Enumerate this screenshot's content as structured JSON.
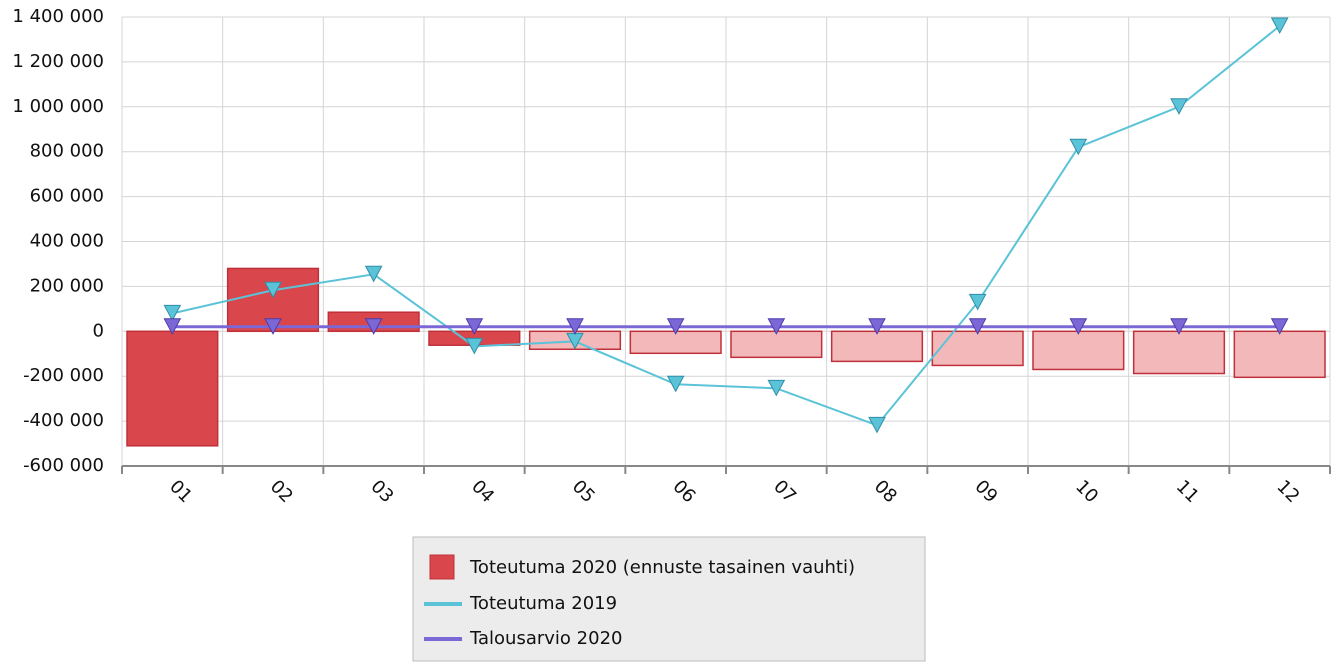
{
  "chart_data": {
    "type": "bar",
    "categories": [
      "01",
      "02",
      "03",
      "04",
      "05",
      "06",
      "07",
      "08",
      "09",
      "10",
      "11",
      "12"
    ],
    "ylim": [
      -600000,
      1400000
    ],
    "yticks": [
      {
        "value": -600000,
        "label": "-600 000"
      },
      {
        "value": -400000,
        "label": "-400 000"
      },
      {
        "value": -200000,
        "label": "-200 000"
      },
      0,
      {
        "value": 200000,
        "label": "200 000"
      },
      {
        "value": 400000,
        "label": "400 000"
      },
      {
        "value": 600000,
        "label": "600 000"
      },
      {
        "value": 800000,
        "label": "800 000"
      },
      {
        "value": 1000000,
        "label": "1 000 000"
      },
      {
        "value": 1200000,
        "label": "1 200 000"
      },
      {
        "value": 1400000,
        "label": "1 400 000"
      }
    ],
    "grid": true,
    "legend": "bottom",
    "series": [
      {
        "name": "Toteutuma 2020 (ennuste tasainen vauhti)",
        "type": "bar",
        "color": "#d9474c",
        "colors": [
          "#d9474c",
          "#d9474c",
          "#d9474c",
          "#d9474c",
          "#f2b8ba",
          "#f2b8ba",
          "#f2b8ba",
          "#f2b8ba",
          "#f2b8ba",
          "#f2b8ba",
          "#f2b8ba",
          "#f2b8ba"
        ],
        "values": [
          -510000,
          280000,
          85000,
          -62000,
          -80000,
          -98000,
          -116000,
          -134000,
          -152000,
          -170000,
          -188000,
          -205000
        ]
      },
      {
        "name": "Toteutuma 2019",
        "type": "line",
        "color": "#5bc3d8",
        "values": [
          80000,
          183000,
          254000,
          -67000,
          -45000,
          -236000,
          -254000,
          -419000,
          129000,
          820000,
          1000000,
          1360000
        ]
      },
      {
        "name": "Talousarvio 2020",
        "type": "line",
        "color": "#7b68d6",
        "values": [
          20000,
          20000,
          20000,
          20000,
          20000,
          20000,
          20000,
          20000,
          20000,
          20000,
          20000,
          20000
        ]
      }
    ]
  }
}
